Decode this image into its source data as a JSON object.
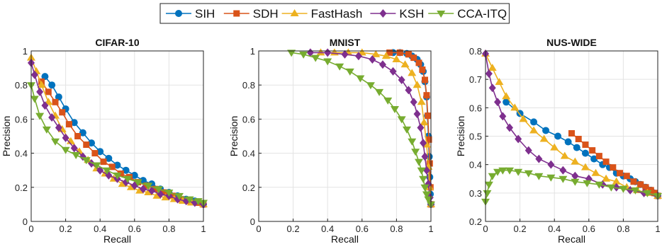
{
  "legend": {
    "items": [
      {
        "name": "SIH",
        "color": "#0072BD",
        "marker": "circle"
      },
      {
        "name": "SDH",
        "color": "#D95319",
        "marker": "square"
      },
      {
        "name": "FastHash",
        "color": "#EDB120",
        "marker": "triangle-up"
      },
      {
        "name": "KSH",
        "color": "#7E2F8E",
        "marker": "diamond"
      },
      {
        "name": "CCA-ITQ",
        "color": "#77AC30",
        "marker": "triangle-down"
      }
    ]
  },
  "chart_data": [
    {
      "type": "line",
      "title": "CIFAR-10",
      "xlabel": "Recall",
      "ylabel": "Precision",
      "xlim": [
        0,
        1
      ],
      "ylim": [
        0,
        1
      ],
      "xticks": [
        "0",
        "0.2",
        "0.4",
        "0.6",
        "0.8",
        "1"
      ],
      "yticks": [
        "0",
        "0.2",
        "0.4",
        "0.6",
        "0.8",
        "1"
      ],
      "series": [
        {
          "name": "SIH",
          "x": [
            0.08,
            0.12,
            0.16,
            0.2,
            0.25,
            0.3,
            0.35,
            0.4,
            0.45,
            0.5,
            0.55,
            0.6,
            0.65,
            0.7,
            0.75,
            0.8,
            0.85,
            0.9,
            0.95,
            1.0
          ],
          "y": [
            0.85,
            0.8,
            0.73,
            0.66,
            0.58,
            0.52,
            0.46,
            0.41,
            0.37,
            0.33,
            0.3,
            0.27,
            0.24,
            0.22,
            0.19,
            0.17,
            0.15,
            0.13,
            0.12,
            0.1
          ]
        },
        {
          "name": "SDH",
          "x": [
            0.06,
            0.1,
            0.14,
            0.18,
            0.22,
            0.27,
            0.32,
            0.37,
            0.42,
            0.47,
            0.52,
            0.57,
            0.62,
            0.67,
            0.72,
            0.77,
            0.82,
            0.87,
            0.92,
            0.97,
            1.0
          ],
          "y": [
            0.82,
            0.76,
            0.7,
            0.64,
            0.57,
            0.5,
            0.45,
            0.4,
            0.35,
            0.32,
            0.28,
            0.26,
            0.23,
            0.21,
            0.19,
            0.17,
            0.15,
            0.13,
            0.12,
            0.11,
            0.1
          ]
        },
        {
          "name": "FastHash",
          "x": [
            0.0,
            0.03,
            0.06,
            0.1,
            0.14,
            0.18,
            0.23,
            0.28,
            0.33,
            0.38,
            0.43,
            0.48,
            0.53,
            0.58,
            0.63,
            0.68,
            0.73,
            0.78,
            0.83,
            0.88,
            0.93,
            1.0
          ],
          "y": [
            0.96,
            0.88,
            0.8,
            0.7,
            0.62,
            0.54,
            0.47,
            0.41,
            0.36,
            0.31,
            0.28,
            0.25,
            0.22,
            0.2,
            0.18,
            0.17,
            0.15,
            0.14,
            0.13,
            0.12,
            0.11,
            0.1
          ]
        },
        {
          "name": "KSH",
          "x": [
            0.0,
            0.02,
            0.05,
            0.08,
            0.12,
            0.16,
            0.2,
            0.25,
            0.3,
            0.35,
            0.4,
            0.45,
            0.5,
            0.55,
            0.6,
            0.65,
            0.7,
            0.75,
            0.8,
            0.85,
            0.9,
            0.95,
            1.0
          ],
          "y": [
            0.93,
            0.86,
            0.76,
            0.68,
            0.61,
            0.55,
            0.49,
            0.43,
            0.38,
            0.34,
            0.3,
            0.27,
            0.25,
            0.23,
            0.21,
            0.19,
            0.18,
            0.16,
            0.15,
            0.13,
            0.12,
            0.11,
            0.1
          ]
        },
        {
          "name": "CCA-ITQ",
          "x": [
            0.0,
            0.02,
            0.05,
            0.09,
            0.14,
            0.2,
            0.26,
            0.32,
            0.38,
            0.44,
            0.5,
            0.56,
            0.62,
            0.68,
            0.74,
            0.8,
            0.86,
            0.92,
            0.97,
            1.0
          ],
          "y": [
            0.8,
            0.72,
            0.62,
            0.54,
            0.47,
            0.42,
            0.39,
            0.36,
            0.33,
            0.3,
            0.27,
            0.25,
            0.23,
            0.21,
            0.19,
            0.17,
            0.15,
            0.13,
            0.12,
            0.11
          ]
        }
      ]
    },
    {
      "type": "line",
      "title": "MNIST",
      "xlabel": "Recall",
      "ylabel": "Precision",
      "xlim": [
        0,
        1
      ],
      "ylim": [
        0,
        1
      ],
      "xticks": [
        "0",
        "0.2",
        "0.4",
        "0.6",
        "0.8",
        "1"
      ],
      "yticks": [
        "0",
        "0.2",
        "0.4",
        "0.6",
        "0.8",
        "1"
      ],
      "series": [
        {
          "name": "SIH",
          "x": [
            0.78,
            0.82,
            0.86,
            0.89,
            0.92,
            0.94,
            0.955,
            0.965,
            0.975,
            0.98,
            0.985,
            0.99,
            0.993,
            0.996,
            1.0
          ],
          "y": [
            0.99,
            0.99,
            0.985,
            0.97,
            0.95,
            0.92,
            0.88,
            0.82,
            0.73,
            0.62,
            0.5,
            0.38,
            0.26,
            0.16,
            0.1
          ]
        },
        {
          "name": "SDH",
          "x": [
            0.76,
            0.82,
            0.87,
            0.9,
            0.93,
            0.95,
            0.965,
            0.975,
            0.982,
            0.988,
            0.993,
            0.997,
            1.0
          ],
          "y": [
            0.99,
            0.99,
            0.98,
            0.96,
            0.93,
            0.89,
            0.83,
            0.74,
            0.62,
            0.48,
            0.34,
            0.2,
            0.1
          ]
        },
        {
          "name": "FastHash",
          "x": [
            0.36,
            0.44,
            0.52,
            0.6,
            0.68,
            0.74,
            0.8,
            0.85,
            0.89,
            0.92,
            0.945,
            0.96,
            0.975,
            0.985,
            0.992,
            1.0
          ],
          "y": [
            0.99,
            0.99,
            0.99,
            0.99,
            0.98,
            0.97,
            0.95,
            0.92,
            0.87,
            0.8,
            0.7,
            0.58,
            0.45,
            0.32,
            0.2,
            0.1
          ]
        },
        {
          "name": "KSH",
          "x": [
            0.3,
            0.4,
            0.5,
            0.58,
            0.66,
            0.72,
            0.78,
            0.83,
            0.87,
            0.9,
            0.92,
            0.94,
            0.955,
            0.965,
            0.975,
            0.985,
            0.995,
            1.0
          ],
          "y": [
            0.99,
            0.99,
            0.98,
            0.97,
            0.95,
            0.92,
            0.88,
            0.83,
            0.77,
            0.7,
            0.63,
            0.55,
            0.46,
            0.38,
            0.3,
            0.22,
            0.14,
            0.1
          ]
        },
        {
          "name": "CCA-ITQ",
          "x": [
            0.19,
            0.26,
            0.33,
            0.4,
            0.47,
            0.53,
            0.59,
            0.65,
            0.7,
            0.75,
            0.79,
            0.83,
            0.86,
            0.89,
            0.91,
            0.93,
            0.945,
            0.955,
            0.965,
            0.975,
            0.985,
            1.0
          ],
          "y": [
            0.99,
            0.98,
            0.96,
            0.94,
            0.91,
            0.88,
            0.84,
            0.8,
            0.76,
            0.71,
            0.66,
            0.6,
            0.54,
            0.47,
            0.41,
            0.35,
            0.3,
            0.25,
            0.2,
            0.16,
            0.13,
            0.1
          ]
        }
      ]
    },
    {
      "type": "line",
      "title": "NUS-WIDE",
      "xlabel": "Recall",
      "ylabel": "Precision",
      "xlim": [
        0,
        1
      ],
      "ylim": [
        0.2,
        0.8
      ],
      "xticks": [
        "0",
        "0.2",
        "0.4",
        "0.6",
        "0.8",
        "1"
      ],
      "yticks": [
        "0.2",
        "0.3",
        "0.4",
        "0.5",
        "0.6",
        "0.7",
        "0.8"
      ],
      "series": [
        {
          "name": "SIH",
          "x": [
            0.12,
            0.2,
            0.28,
            0.35,
            0.42,
            0.48,
            0.53,
            0.58,
            0.63,
            0.68,
            0.72,
            0.76,
            0.8,
            0.84,
            0.87,
            0.9,
            0.93,
            0.96,
            0.98,
            1.0
          ],
          "y": [
            0.62,
            0.58,
            0.55,
            0.52,
            0.5,
            0.48,
            0.46,
            0.44,
            0.42,
            0.4,
            0.39,
            0.37,
            0.36,
            0.35,
            0.34,
            0.33,
            0.32,
            0.31,
            0.3,
            0.29
          ]
        },
        {
          "name": "SDH",
          "x": [
            0.5,
            0.54,
            0.58,
            0.62,
            0.66,
            0.7,
            0.74,
            0.78,
            0.82,
            0.86,
            0.9,
            0.93,
            0.96,
            0.98,
            1.0
          ],
          "y": [
            0.51,
            0.49,
            0.47,
            0.45,
            0.43,
            0.41,
            0.39,
            0.37,
            0.36,
            0.34,
            0.33,
            0.32,
            0.31,
            0.3,
            0.29
          ]
        },
        {
          "name": "FastHash",
          "x": [
            0.0,
            0.04,
            0.08,
            0.12,
            0.17,
            0.22,
            0.28,
            0.34,
            0.4,
            0.46,
            0.52,
            0.58,
            0.64,
            0.7,
            0.76,
            0.82,
            0.88,
            0.94,
            1.0
          ],
          "y": [
            0.79,
            0.74,
            0.69,
            0.64,
            0.6,
            0.56,
            0.52,
            0.49,
            0.46,
            0.43,
            0.41,
            0.39,
            0.37,
            0.35,
            0.34,
            0.32,
            0.31,
            0.3,
            0.29
          ]
        },
        {
          "name": "KSH",
          "x": [
            0.0,
            0.02,
            0.04,
            0.07,
            0.1,
            0.14,
            0.19,
            0.25,
            0.31,
            0.38,
            0.45,
            0.52,
            0.6,
            0.68,
            0.76,
            0.84,
            0.92,
            1.0
          ],
          "y": [
            0.79,
            0.72,
            0.67,
            0.62,
            0.57,
            0.53,
            0.49,
            0.45,
            0.42,
            0.4,
            0.38,
            0.36,
            0.35,
            0.33,
            0.32,
            0.31,
            0.3,
            0.29
          ]
        },
        {
          "name": "CCA-ITQ",
          "x": [
            0.0,
            0.01,
            0.02,
            0.04,
            0.07,
            0.1,
            0.14,
            0.19,
            0.25,
            0.31,
            0.38,
            0.45,
            0.52,
            0.59,
            0.66,
            0.73,
            0.8,
            0.87,
            0.94,
            1.0
          ],
          "y": [
            0.27,
            0.3,
            0.33,
            0.36,
            0.375,
            0.38,
            0.38,
            0.375,
            0.37,
            0.36,
            0.355,
            0.35,
            0.34,
            0.335,
            0.33,
            0.32,
            0.315,
            0.31,
            0.3,
            0.29
          ]
        }
      ]
    }
  ]
}
